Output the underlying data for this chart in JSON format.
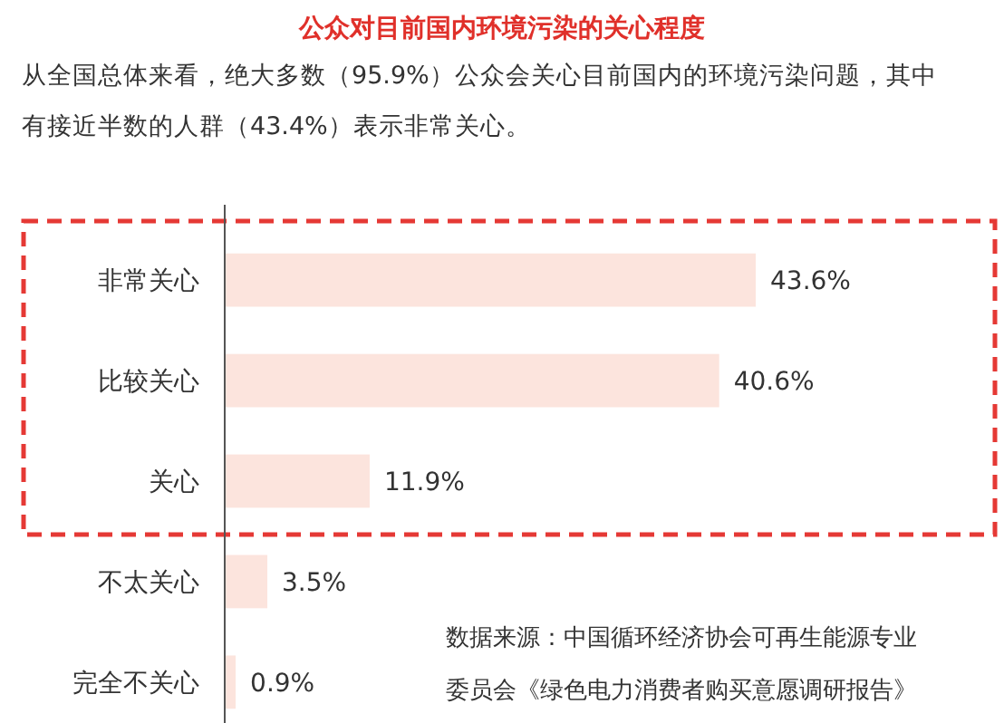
{
  "chart_data": {
    "type": "bar",
    "orientation": "horizontal",
    "title": "公众对目前国内环境污染的关心程度",
    "subtitle": "从全国总体来看，绝大多数（95.9%）公众会关心目前国内的环境污染问题，其中有接近半数的人群（43.4%）表示非常关心。",
    "categories": [
      "非常关心",
      "比较关心",
      "关心",
      "不太关心",
      "完全不关心"
    ],
    "values": [
      43.6,
      40.6,
      11.9,
      3.5,
      0.9
    ],
    "value_labels": [
      "43.6%",
      "40.6%",
      "11.9%",
      "3.5%",
      "0.9%"
    ],
    "color": "#fce4dd",
    "annotations": [
      "数据来源：中国循环经济协会可再生能源专业委员会《绿色电力消费者购买意愿调研报告》"
    ]
  }
}
